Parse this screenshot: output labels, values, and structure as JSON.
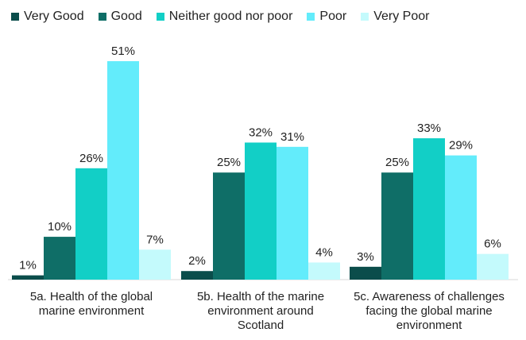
{
  "chart_data": {
    "type": "bar",
    "categories": [
      [
        "5a. Health of the global",
        "marine environment"
      ],
      [
        "5b. Health of the marine",
        "environment around",
        "Scotland"
      ],
      [
        "5c. Awareness of challenges",
        "facing the global marine",
        "environment"
      ]
    ],
    "series": [
      {
        "name": "Very Good",
        "color": "#0b4d4b",
        "values": [
          1,
          2,
          3
        ],
        "labels": [
          "1%",
          "2%",
          "3%"
        ]
      },
      {
        "name": "Good",
        "color": "#0f6e67",
        "values": [
          10,
          25,
          25
        ],
        "labels": [
          "10%",
          "25%",
          "25%"
        ]
      },
      {
        "name": "Neither good nor poor",
        "color": "#12cfc6",
        "values": [
          26,
          32,
          33
        ],
        "labels": [
          "26%",
          "32%",
          "33%"
        ]
      },
      {
        "name": "Poor",
        "color": "#63ecfb",
        "values": [
          51,
          31,
          29
        ],
        "labels": [
          "51%",
          "31%",
          "29%"
        ]
      },
      {
        "name": "Very Poor",
        "color": "#c4fafc",
        "values": [
          7,
          4,
          6
        ],
        "labels": [
          "7%",
          "4%",
          "6%"
        ]
      }
    ],
    "ylim": [
      0,
      51
    ],
    "grid": false,
    "legend": "top"
  }
}
